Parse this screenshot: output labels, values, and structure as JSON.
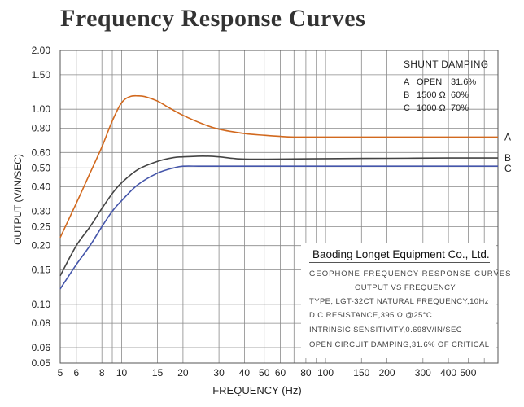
{
  "title": "Frequency Response Curves",
  "chart_data": {
    "type": "line",
    "title": "Frequency Response Curves",
    "xlabel": "FREQUENCY (Hz)",
    "ylabel": "OUTPUT (V/IN/SEC)",
    "xscale": "log",
    "yscale": "log",
    "xlim": [
      5,
      700
    ],
    "ylim": [
      0.05,
      2.0
    ],
    "x_ticks": [
      5,
      6,
      7,
      8,
      9,
      10,
      15,
      20,
      30,
      40,
      50,
      60,
      70,
      80,
      90,
      100,
      150,
      200,
      300,
      400,
      500,
      600,
      700
    ],
    "x_tick_labels": [
      {
        "value": 5,
        "label": "5"
      },
      {
        "value": 6,
        "label": "6"
      },
      {
        "value": 8,
        "label": "8"
      },
      {
        "value": 10,
        "label": "10"
      },
      {
        "value": 15,
        "label": "15"
      },
      {
        "value": 20,
        "label": "20"
      },
      {
        "value": 30,
        "label": "30"
      },
      {
        "value": 40,
        "label": "40"
      },
      {
        "value": 50,
        "label": "50"
      },
      {
        "value": 60,
        "label": "60"
      },
      {
        "value": 80,
        "label": "80"
      },
      {
        "value": 100,
        "label": "100"
      },
      {
        "value": 150,
        "label": "150"
      },
      {
        "value": 200,
        "label": "200"
      },
      {
        "value": 300,
        "label": "300"
      },
      {
        "value": 400,
        "label": "400"
      },
      {
        "value": 500,
        "label": "500"
      }
    ],
    "y_ticks": [
      {
        "value": 2.0,
        "label": "2.00"
      },
      {
        "value": 1.5,
        "label": "1.50"
      },
      {
        "value": 1.0,
        "label": "1.00"
      },
      {
        "value": 0.8,
        "label": "0.80"
      },
      {
        "value": 0.6,
        "label": "0.60"
      },
      {
        "value": 0.5,
        "label": "0.50"
      },
      {
        "value": 0.4,
        "label": "0.40"
      },
      {
        "value": 0.3,
        "label": "0.30"
      },
      {
        "value": 0.25,
        "label": "0.25"
      },
      {
        "value": 0.2,
        "label": "0.20"
      },
      {
        "value": 0.15,
        "label": "0.15"
      },
      {
        "value": 0.1,
        "label": "0.10"
      },
      {
        "value": 0.08,
        "label": "0.08"
      },
      {
        "value": 0.06,
        "label": "0.06"
      },
      {
        "value": 0.05,
        "label": "0.05"
      }
    ],
    "grid": true,
    "series": [
      {
        "name": "A",
        "label": "A",
        "damping": "OPEN 31.6%",
        "color": "#d2691e",
        "points": [
          [
            5,
            0.22
          ],
          [
            6,
            0.33
          ],
          [
            7,
            0.47
          ],
          [
            8,
            0.64
          ],
          [
            9,
            0.87
          ],
          [
            10,
            1.08
          ],
          [
            11,
            1.16
          ],
          [
            12,
            1.17
          ],
          [
            13,
            1.16
          ],
          [
            15,
            1.1
          ],
          [
            17,
            1.02
          ],
          [
            20,
            0.93
          ],
          [
            25,
            0.84
          ],
          [
            30,
            0.79
          ],
          [
            40,
            0.75
          ],
          [
            50,
            0.735
          ],
          [
            60,
            0.725
          ],
          [
            70,
            0.72
          ],
          [
            100,
            0.72
          ],
          [
            200,
            0.72
          ],
          [
            400,
            0.72
          ],
          [
            700,
            0.72
          ]
        ]
      },
      {
        "name": "B",
        "label": "B",
        "damping": "1500 Ω 60%",
        "color": "#444444",
        "points": [
          [
            5,
            0.14
          ],
          [
            6,
            0.2
          ],
          [
            7,
            0.25
          ],
          [
            8,
            0.31
          ],
          [
            9,
            0.37
          ],
          [
            10,
            0.42
          ],
          [
            12,
            0.49
          ],
          [
            15,
            0.54
          ],
          [
            18,
            0.565
          ],
          [
            20,
            0.57
          ],
          [
            25,
            0.575
          ],
          [
            30,
            0.57
          ],
          [
            35,
            0.56
          ],
          [
            40,
            0.555
          ],
          [
            60,
            0.555
          ],
          [
            100,
            0.558
          ],
          [
            200,
            0.56
          ],
          [
            400,
            0.562
          ],
          [
            700,
            0.562
          ]
        ]
      },
      {
        "name": "C",
        "label": "C",
        "damping": "1000 Ω 70%",
        "color": "#4455aa",
        "points": [
          [
            5,
            0.12
          ],
          [
            6,
            0.16
          ],
          [
            7,
            0.2
          ],
          [
            8,
            0.25
          ],
          [
            9,
            0.3
          ],
          [
            10,
            0.34
          ],
          [
            12,
            0.41
          ],
          [
            15,
            0.47
          ],
          [
            18,
            0.5
          ],
          [
            20,
            0.51
          ],
          [
            25,
            0.51
          ],
          [
            40,
            0.51
          ],
          [
            100,
            0.51
          ],
          [
            300,
            0.51
          ],
          [
            700,
            0.51
          ]
        ]
      }
    ]
  },
  "shunt_damping": {
    "title": "SHUNT DAMPING",
    "rows": [
      {
        "letter": "A",
        "resistance": "OPEN",
        "percent": "31.6%"
      },
      {
        "letter": "B",
        "resistance": "1500 Ω",
        "percent": "60%"
      },
      {
        "letter": "C",
        "resistance": "1000 Ω",
        "percent": "70%"
      }
    ]
  },
  "info_box": {
    "company": "Baoding Longet Equipment Co., Ltd.",
    "lines": [
      "GEOPHONE FREQUENCY RESPONSE CURVES",
      "OUTPUT VS FREQUENCY",
      "TYPE, LGT-32CT NATURAL FREQUENCY,10Hz",
      "D.C.RESISTANCE,395 Ω @25°C",
      "INTRINSIC SENSITIVITY,0.698V/IN/SEC",
      "OPEN CIRCUIT DAMPING,31.6% OF CRITICAL"
    ]
  }
}
